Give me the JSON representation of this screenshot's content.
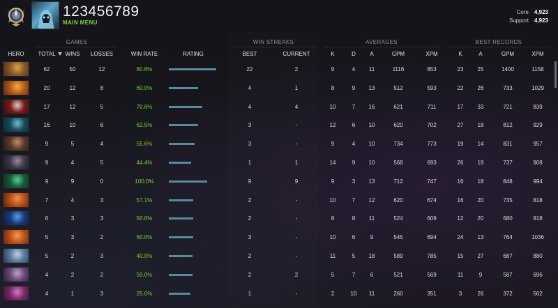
{
  "profile": {
    "username": "123456789",
    "menu_label": "MAIN MENU",
    "roles": [
      {
        "label": "Core",
        "value": "4,923"
      },
      {
        "label": "Support",
        "value": "4,923"
      }
    ]
  },
  "groups": {
    "games": "GAMES",
    "win_streaks": "WIN STREAKS",
    "averages": "AVERAGES",
    "best_records": "BEST RECORDS"
  },
  "columns": {
    "hero": "HERO",
    "total": "TOTAL",
    "wins": "WINS",
    "losses": "LOSSES",
    "win_rate": "WIN RATE",
    "rating": "RATING",
    "best": "BEST",
    "current": "CURRENT",
    "k": "K",
    "d": "D",
    "a": "A",
    "gpm": "GPM",
    "xpm": "XPM",
    "rec_k": "K",
    "rec_a": "A",
    "rec_gpm": "GPM",
    "rec_xpm": "XPM"
  },
  "rows": [
    {
      "hero_icon": "hero-portrait-1",
      "colors": [
        "#8a5a2a",
        "#d9a14a",
        "#4a2a18"
      ],
      "total": "62",
      "wins": "50",
      "losses": "12",
      "win_rate": "80.6%",
      "rating": 0.97,
      "best": "22",
      "current": "2",
      "k": "9",
      "d": "4",
      "a": "11",
      "gpm": "1116",
      "xpm": "853",
      "rk": "23",
      "ra": "25",
      "rgpm": "1400",
      "rxpm": "1158"
    },
    {
      "hero_icon": "hero-portrait-2",
      "colors": [
        "#b85a1a",
        "#f0b040",
        "#5a2a10"
      ],
      "total": "20",
      "wins": "12",
      "losses": "8",
      "win_rate": "60.0%",
      "rating": 0.6,
      "best": "4",
      "current": "1",
      "k": "8",
      "d": "9",
      "a": "13",
      "gpm": "512",
      "xpm": "593",
      "rk": "22",
      "ra": "26",
      "rgpm": "733",
      "rxpm": "1029"
    },
    {
      "hero_icon": "hero-portrait-3",
      "colors": [
        "#7a1a1a",
        "#d8d0c8",
        "#3a0e0e"
      ],
      "total": "17",
      "wins": "12",
      "losses": "5",
      "win_rate": "70.6%",
      "rating": 0.68,
      "best": "4",
      "current": "4",
      "k": "10",
      "d": "7",
      "a": "16",
      "gpm": "621",
      "xpm": "711",
      "rk": "17",
      "ra": "33",
      "rgpm": "721",
      "rxpm": "839"
    },
    {
      "hero_icon": "hero-portrait-4",
      "colors": [
        "#1a4a5a",
        "#6ac0d0",
        "#0e2a34"
      ],
      "total": "16",
      "wins": "10",
      "losses": "6",
      "win_rate": "62.5%",
      "rating": 0.6,
      "best": "3",
      "current": "-",
      "k": "12",
      "d": "6",
      "a": "10",
      "gpm": "620",
      "xpm": "702",
      "rk": "27",
      "ra": "18",
      "rgpm": "812",
      "rxpm": "929"
    },
    {
      "hero_icon": "hero-portrait-5",
      "colors": [
        "#5a3a2a",
        "#c08a6a",
        "#2a1a12"
      ],
      "total": "9",
      "wins": "5",
      "losses": "4",
      "win_rate": "55.6%",
      "rating": 0.53,
      "best": "3",
      "current": "-",
      "k": "9",
      "d": "4",
      "a": "10",
      "gpm": "734",
      "xpm": "773",
      "rk": "19",
      "ra": "14",
      "rgpm": "831",
      "rxpm": "957"
    },
    {
      "hero_icon": "hero-portrait-6",
      "colors": [
        "#3a3a4a",
        "#9a8a9a",
        "#1a1a22"
      ],
      "total": "9",
      "wins": "4",
      "losses": "5",
      "win_rate": "44.4%",
      "rating": 0.46,
      "best": "1",
      "current": "1",
      "k": "14",
      "d": "9",
      "a": "10",
      "gpm": "568",
      "xpm": "693",
      "rk": "26",
      "ra": "19",
      "rgpm": "737",
      "rxpm": "908"
    },
    {
      "hero_icon": "hero-portrait-7",
      "colors": [
        "#1a5a3a",
        "#5ad08a",
        "#0e2e1e"
      ],
      "total": "9",
      "wins": "9",
      "losses": "0",
      "win_rate": "100.0%",
      "rating": 0.78,
      "best": "9",
      "current": "9",
      "k": "9",
      "d": "3",
      "a": "13",
      "gpm": "712",
      "xpm": "747",
      "rk": "16",
      "ra": "18",
      "rgpm": "848",
      "rxpm": "994"
    },
    {
      "hero_icon": "hero-portrait-8",
      "colors": [
        "#b8501a",
        "#f09040",
        "#5a2008"
      ],
      "total": "7",
      "wins": "4",
      "losses": "3",
      "win_rate": "57.1%",
      "rating": 0.5,
      "best": "2",
      "current": "-",
      "k": "10",
      "d": "7",
      "a": "12",
      "gpm": "620",
      "xpm": "674",
      "rk": "16",
      "ra": "20",
      "rgpm": "735",
      "rxpm": "818"
    },
    {
      "hero_icon": "hero-portrait-9",
      "colors": [
        "#1a3a7a",
        "#5a9ae0",
        "#0e1a3e"
      ],
      "total": "6",
      "wins": "3",
      "losses": "3",
      "win_rate": "50.0%",
      "rating": 0.5,
      "best": "2",
      "current": "-",
      "k": "8",
      "d": "8",
      "a": "11",
      "gpm": "524",
      "xpm": "609",
      "rk": "12",
      "ra": "20",
      "rgpm": "680",
      "rxpm": "818"
    },
    {
      "hero_icon": "hero-portrait-10",
      "colors": [
        "#c0501a",
        "#f0a050",
        "#602810"
      ],
      "total": "5",
      "wins": "3",
      "losses": "2",
      "win_rate": "60.0%",
      "rating": 0.5,
      "best": "3",
      "current": "-",
      "k": "10",
      "d": "6",
      "a": "9",
      "gpm": "545",
      "xpm": "694",
      "rk": "24",
      "ra": "13",
      "rgpm": "764",
      "rxpm": "1036"
    },
    {
      "hero_icon": "hero-portrait-11",
      "colors": [
        "#5a7aa0",
        "#c0d0e0",
        "#2a3a50"
      ],
      "total": "5",
      "wins": "2",
      "losses": "3",
      "win_rate": "40.0%",
      "rating": 0.48,
      "best": "2",
      "current": "-",
      "k": "11",
      "d": "5",
      "a": "18",
      "gpm": "589",
      "xpm": "785",
      "rk": "15",
      "ra": "27",
      "rgpm": "687",
      "rxpm": "880"
    },
    {
      "hero_icon": "hero-portrait-12",
      "colors": [
        "#6a4a7a",
        "#c0a0c8",
        "#2e1e38"
      ],
      "total": "4",
      "wins": "2",
      "losses": "2",
      "win_rate": "50.0%",
      "rating": 0.48,
      "best": "2",
      "current": "2",
      "k": "5",
      "d": "7",
      "a": "6",
      "gpm": "521",
      "xpm": "569",
      "rk": "11",
      "ra": "9",
      "rgpm": "587",
      "rxpm": "696"
    },
    {
      "hero_icon": "hero-portrait-13",
      "colors": [
        "#7a2a6a",
        "#d07ac0",
        "#3a1030"
      ],
      "total": "4",
      "wins": "1",
      "losses": "3",
      "win_rate": "25.0%",
      "rating": 0.44,
      "best": "1",
      "current": "-",
      "k": "2",
      "d": "10",
      "a": "11",
      "gpm": "260",
      "xpm": "351",
      "rk": "3",
      "ra": "26",
      "rgpm": "372",
      "rxpm": "562"
    }
  ]
}
